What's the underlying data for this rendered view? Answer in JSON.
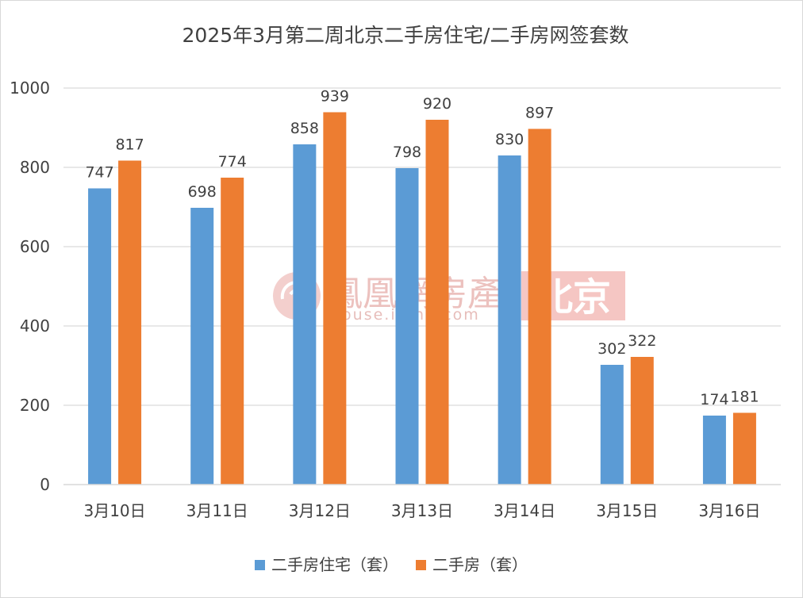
{
  "chart_data": {
    "type": "bar",
    "title": "2025年3月第二周北京二手房住宅/二手房网签套数",
    "categories": [
      "3月10日",
      "3月11日",
      "3月12日",
      "3月13日",
      "3月14日",
      "3月15日",
      "3月16日"
    ],
    "series": [
      {
        "name": "二手房住宅（套）",
        "color": "#5b9bd5",
        "values": [
          747,
          698,
          858,
          798,
          830,
          302,
          174
        ]
      },
      {
        "name": "二手房（套）",
        "color": "#ed7d31",
        "values": [
          817,
          774,
          939,
          920,
          897,
          322,
          181
        ]
      }
    ],
    "ylim": [
      0,
      1000
    ],
    "yticks": [
      0,
      200,
      400,
      600,
      800,
      1000
    ],
    "grid": true,
    "legend_position": "bottom"
  },
  "watermark": {
    "brand": "鳳凰網房產",
    "url": "house.ifeng.com",
    "city": "北京",
    "color": "#f4c0bd",
    "logo_icon": "ifeng-swirl-icon"
  }
}
